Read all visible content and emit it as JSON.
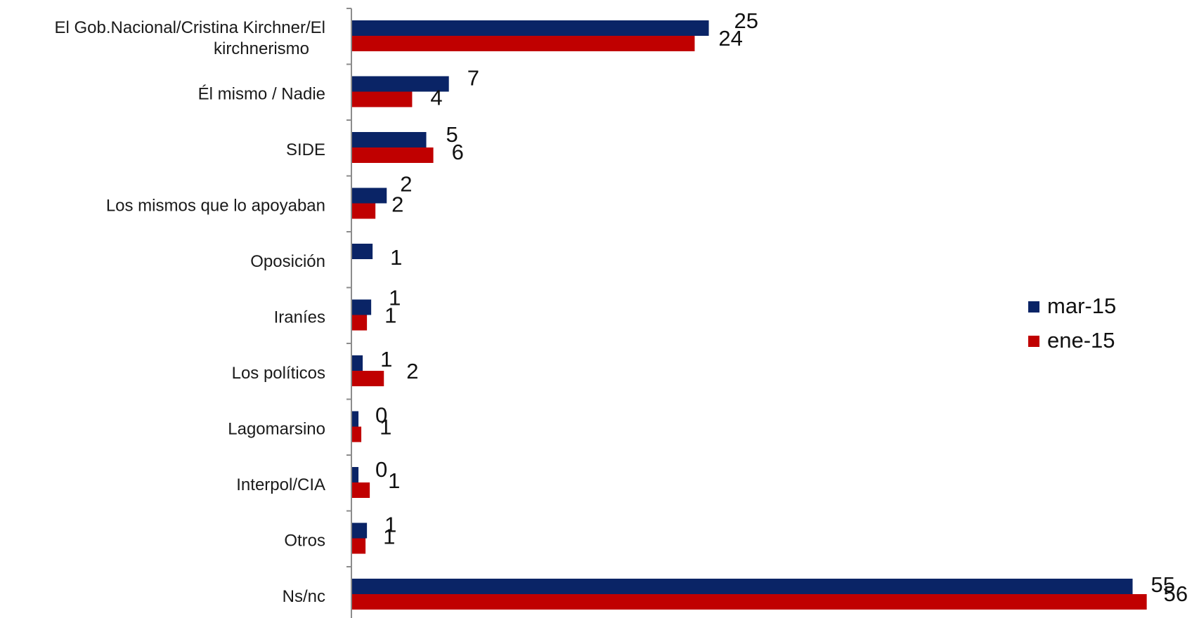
{
  "chart_data": {
    "type": "bar",
    "orientation": "horizontal",
    "categories": [
      [
        "El Gob.Nacional/Cristina Kirchner/El",
        "kirchnerismo"
      ],
      [
        "Él mismo / Nadie"
      ],
      [
        "SIDE"
      ],
      [
        "Los mismos que lo apoyaban"
      ],
      [
        "Oposición"
      ],
      [
        "Iraníes"
      ],
      [
        "Los políticos"
      ],
      [
        "Lagomarsino"
      ],
      [
        "Interpol/CIA"
      ],
      [
        "Otros"
      ],
      [
        "Ns/nc"
      ]
    ],
    "series": [
      {
        "name": "mar-15",
        "color": "#0a2466",
        "values": [
          25.3,
          6.9,
          5.3,
          2.5,
          1.5,
          1.4,
          0.8,
          0.5,
          0.5,
          1.1,
          55.3
        ],
        "labels": [
          "25",
          "7",
          "5",
          "2",
          "1",
          "1",
          "1",
          "0",
          "0",
          "1",
          "55"
        ]
      },
      {
        "name": "ene-15",
        "color": "#c00000",
        "values": [
          24.3,
          4.3,
          5.8,
          1.7,
          null,
          1.1,
          2.3,
          0.7,
          1.3,
          1.0,
          56.3
        ],
        "labels": [
          "24",
          "4",
          "6",
          "2",
          null,
          "1",
          "2",
          "1",
          "1",
          "1",
          "56"
        ]
      }
    ],
    "xlim": [
      0,
      57
    ],
    "grid": false,
    "legend_position": "right"
  }
}
